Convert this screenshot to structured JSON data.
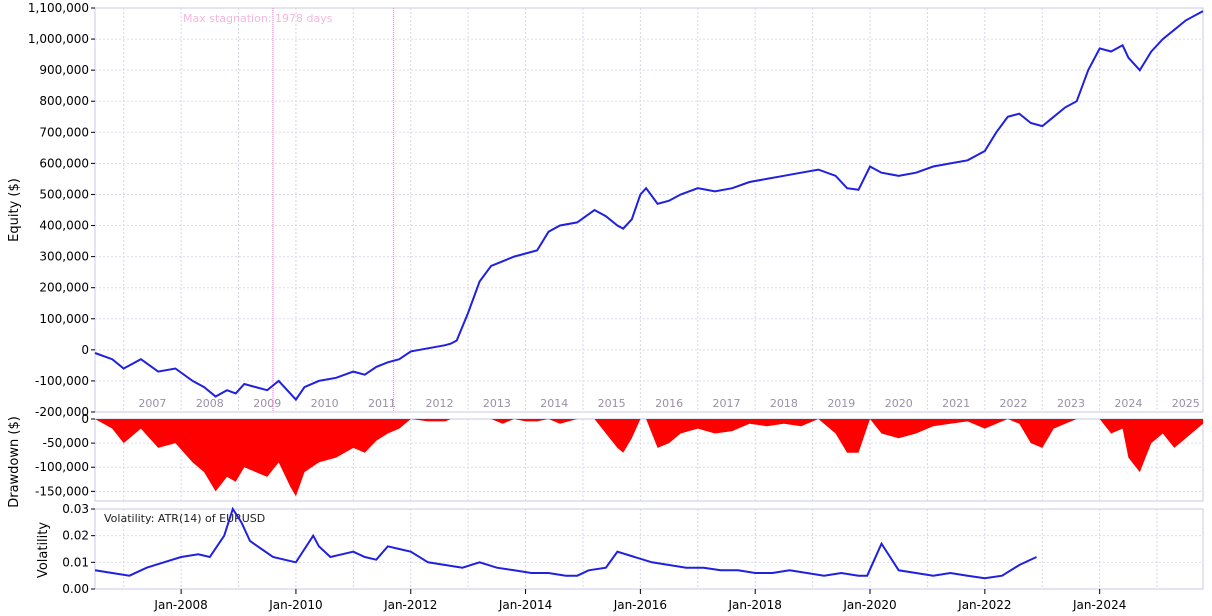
{
  "chart_data": [
    {
      "type": "line",
      "ylabel": "Equity ($)",
      "ylim": [
        -200000,
        1100000
      ],
      "yticks": [
        -200000,
        -100000,
        0,
        100000,
        200000,
        300000,
        400000,
        500000,
        600000,
        700000,
        800000,
        900000,
        1000000,
        1100000
      ],
      "ytick_labels": [
        "-200,000",
        "-100,000",
        "0",
        "100,000",
        "200,000",
        "300,000",
        "400,000",
        "500,000",
        "600,000",
        "700,000",
        "800,000",
        "900,000",
        "1,000,000",
        "1,100,000"
      ],
      "xlim": [
        2006.5,
        2025.8
      ],
      "year_labels": [
        "2007",
        "2008",
        "2009",
        "2010",
        "2011",
        "2012",
        "2013",
        "2014",
        "2015",
        "2016",
        "2017",
        "2018",
        "2019",
        "2020",
        "2021",
        "2022",
        "2023",
        "2024",
        "2025"
      ],
      "annotation": "Max stagnation: 1978 days",
      "stagnation_range": [
        2009.6,
        2011.7
      ],
      "color": "#2020e0",
      "series": [
        {
          "x": [
            2006.5,
            2006.8,
            2007.0,
            2007.3,
            2007.6,
            2007.9,
            2008.2,
            2008.4,
            2008.6,
            2008.8,
            2008.95,
            2009.1,
            2009.3,
            2009.5,
            2009.7,
            2009.9,
            2010.0,
            2010.15,
            2010.4,
            2010.7,
            2011.0,
            2011.2,
            2011.4,
            2011.6,
            2011.8,
            2012.0,
            2012.3,
            2012.6,
            2012.7,
            2012.8,
            2013.0,
            2013.2,
            2013.4,
            2013.6,
            2013.8,
            2014.0,
            2014.2,
            2014.4,
            2014.6,
            2014.9,
            2015.2,
            2015.4,
            2015.6,
            2015.7,
            2015.85,
            2016.0,
            2016.1,
            2016.3,
            2016.5,
            2016.7,
            2017.0,
            2017.3,
            2017.6,
            2017.9,
            2018.2,
            2018.5,
            2018.8,
            2019.1,
            2019.4,
            2019.6,
            2019.8,
            2020.0,
            2020.2,
            2020.5,
            2020.8,
            2021.1,
            2021.4,
            2021.7,
            2022.0,
            2022.2,
            2022.4,
            2022.6,
            2022.8,
            2023.0,
            2023.2,
            2023.4,
            2023.6,
            2023.8,
            2024.0,
            2024.2,
            2024.4,
            2024.5,
            2024.7,
            2024.9,
            2025.1,
            2025.3,
            2025.5,
            2025.8
          ],
          "y": [
            -10000,
            -30000,
            -60000,
            -30000,
            -70000,
            -60000,
            -100000,
            -120000,
            -150000,
            -130000,
            -140000,
            -110000,
            -120000,
            -130000,
            -100000,
            -140000,
            -160000,
            -120000,
            -100000,
            -90000,
            -70000,
            -80000,
            -55000,
            -40000,
            -30000,
            -5000,
            5000,
            15000,
            20000,
            30000,
            120000,
            220000,
            270000,
            285000,
            300000,
            310000,
            320000,
            380000,
            400000,
            410000,
            450000,
            430000,
            400000,
            390000,
            420000,
            500000,
            520000,
            470000,
            480000,
            500000,
            520000,
            510000,
            520000,
            540000,
            550000,
            560000,
            570000,
            580000,
            560000,
            520000,
            515000,
            590000,
            570000,
            560000,
            570000,
            590000,
            600000,
            610000,
            640000,
            700000,
            750000,
            760000,
            730000,
            720000,
            750000,
            780000,
            800000,
            900000,
            970000,
            960000,
            980000,
            940000,
            900000,
            960000,
            1000000,
            1030000,
            1060000,
            1090000
          ]
        }
      ]
    },
    {
      "type": "area",
      "ylabel": "Drawdown ($)",
      "ylim": [
        -170000,
        0
      ],
      "yticks": [
        0,
        -50000,
        -100000,
        -150000
      ],
      "ytick_labels": [
        "0",
        "-50,000",
        "-100,000",
        "-150,000"
      ],
      "xlim": [
        2006.5,
        2025.8
      ],
      "color": "#ff0000",
      "series": [
        {
          "x": [
            2006.5,
            2006.8,
            2007.0,
            2007.3,
            2007.6,
            2007.9,
            2008.2,
            2008.4,
            2008.6,
            2008.8,
            2008.95,
            2009.1,
            2009.3,
            2009.5,
            2009.7,
            2009.9,
            2010.0,
            2010.15,
            2010.4,
            2010.7,
            2011.0,
            2011.2,
            2011.4,
            2011.6,
            2011.8,
            2012.0,
            2012.3,
            2012.6,
            2012.7,
            2012.8,
            2013.0,
            2013.2,
            2013.4,
            2013.6,
            2013.8,
            2014.0,
            2014.2,
            2014.4,
            2014.6,
            2014.9,
            2015.2,
            2015.4,
            2015.6,
            2015.7,
            2015.85,
            2016.0,
            2016.1,
            2016.3,
            2016.5,
            2016.7,
            2017.0,
            2017.3,
            2017.6,
            2017.9,
            2018.2,
            2018.5,
            2018.8,
            2019.1,
            2019.4,
            2019.6,
            2019.8,
            2020.0,
            2020.2,
            2020.5,
            2020.8,
            2021.1,
            2021.4,
            2021.7,
            2022.0,
            2022.2,
            2022.4,
            2022.6,
            2022.8,
            2023.0,
            2023.2,
            2023.4,
            2023.6,
            2023.8,
            2024.0,
            2024.2,
            2024.4,
            2024.5,
            2024.7,
            2024.9,
            2025.1,
            2025.3,
            2025.5,
            2025.8
          ],
          "y": [
            0,
            -20000,
            -50000,
            -20000,
            -60000,
            -50000,
            -90000,
            -110000,
            -150000,
            -120000,
            -130000,
            -100000,
            -110000,
            -120000,
            -90000,
            -140000,
            -160000,
            -110000,
            -90000,
            -80000,
            -60000,
            -70000,
            -45000,
            -30000,
            -20000,
            0,
            -5000,
            -5000,
            0,
            0,
            0,
            0,
            0,
            -10000,
            0,
            -5000,
            -5000,
            0,
            -10000,
            0,
            0,
            -30000,
            -60000,
            -70000,
            -40000,
            0,
            0,
            -60000,
            -50000,
            -30000,
            -20000,
            -30000,
            -25000,
            -10000,
            -15000,
            -10000,
            -15000,
            0,
            -30000,
            -70000,
            -70000,
            0,
            -30000,
            -40000,
            -30000,
            -15000,
            -10000,
            -5000,
            -20000,
            -10000,
            0,
            -10000,
            -50000,
            -60000,
            -20000,
            -10000,
            0,
            0,
            0,
            -30000,
            -20000,
            -80000,
            -110000,
            -50000,
            -30000,
            -60000,
            -40000,
            -10000
          ]
        }
      ]
    },
    {
      "type": "line",
      "ylabel": "Volatility",
      "annotation": "Volatility: ATR(14) of EURUSD",
      "ylim": [
        0,
        0.03
      ],
      "yticks": [
        0,
        0.01,
        0.02,
        0.03
      ],
      "ytick_labels": [
        "0.00",
        "0.01",
        "0.02",
        "0.03"
      ],
      "xlim": [
        2006.5,
        2025.8
      ],
      "xtick_values": [
        2008.0,
        2010.0,
        2012.0,
        2014.0,
        2016.0,
        2018.0,
        2020.0,
        2022.0,
        2024.0
      ],
      "xtick_labels": [
        "Jan-2008",
        "Jan-2010",
        "Jan-2012",
        "Jan-2014",
        "Jan-2016",
        "Jan-2018",
        "Jan-2020",
        "Jan-2022",
        "Jan-2024"
      ],
      "color": "#2020e0",
      "series": [
        {
          "x": [
            2006.5,
            2006.8,
            2007.1,
            2007.4,
            2007.7,
            2008.0,
            2008.3,
            2008.5,
            2008.75,
            2008.9,
            2009.05,
            2009.2,
            2009.4,
            2009.6,
            2009.8,
            2010.0,
            2010.3,
            2010.4,
            2010.6,
            2010.8,
            2011.0,
            2011.2,
            2011.4,
            2011.6,
            2011.8,
            2012.0,
            2012.3,
            2012.6,
            2012.9,
            2013.2,
            2013.5,
            2013.8,
            2014.1,
            2014.4,
            2014.7,
            2014.9,
            2015.1,
            2015.4,
            2015.6,
            2015.9,
            2016.2,
            2016.5,
            2016.8,
            2017.1,
            2017.4,
            2017.7,
            2018.0,
            2018.3,
            2018.6,
            2018.9,
            2019.2,
            2019.5,
            2019.8,
            2019.95,
            2020.2,
            2020.5,
            2020.8,
            2021.1,
            2021.4,
            2021.7,
            2022.0,
            2022.3,
            2022.6,
            2022.9
          ],
          "y": [
            0.007,
            0.006,
            0.005,
            0.008,
            0.01,
            0.012,
            0.013,
            0.012,
            0.02,
            0.03,
            0.025,
            0.018,
            0.015,
            0.012,
            0.011,
            0.01,
            0.02,
            0.016,
            0.012,
            0.013,
            0.014,
            0.012,
            0.011,
            0.016,
            0.015,
            0.014,
            0.01,
            0.009,
            0.008,
            0.01,
            0.008,
            0.007,
            0.006,
            0.006,
            0.005,
            0.005,
            0.007,
            0.008,
            0.014,
            0.012,
            0.01,
            0.009,
            0.008,
            0.008,
            0.007,
            0.007,
            0.006,
            0.006,
            0.007,
            0.006,
            0.005,
            0.006,
            0.005,
            0.005,
            0.017,
            0.007,
            0.006,
            0.005,
            0.006,
            0.005,
            0.004,
            0.005,
            0.009,
            0.012
          ]
        }
      ]
    }
  ]
}
